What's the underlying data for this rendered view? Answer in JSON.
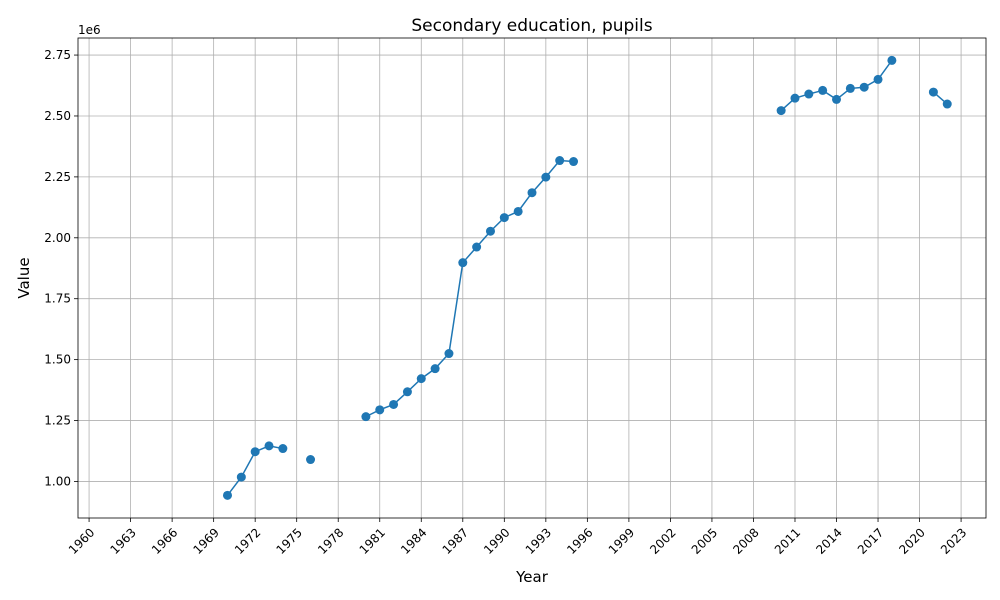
{
  "chart_data": {
    "type": "line",
    "title": "Secondary education, pupils",
    "xlabel": "Year",
    "ylabel": "Value",
    "y_offset_label": "1e6",
    "xlim": [
      1959.2,
      2024.8
    ],
    "ylim": [
      850000,
      2820000
    ],
    "x_ticks": [
      1960,
      1963,
      1966,
      1969,
      1972,
      1975,
      1978,
      1981,
      1984,
      1987,
      1990,
      1993,
      1996,
      1999,
      2002,
      2005,
      2008,
      2011,
      2014,
      2017,
      2020,
      2023
    ],
    "y_ticks": [
      1000000,
      1250000,
      1500000,
      1750000,
      2000000,
      2250000,
      2500000,
      2750000
    ],
    "y_tick_labels": [
      "1.00",
      "1.25",
      "1.50",
      "1.75",
      "2.00",
      "2.25",
      "2.50",
      "2.75"
    ],
    "grid": true,
    "color": "#1f77b4",
    "marker": "circle",
    "x": [
      1970,
      1971,
      1972,
      1973,
      1974,
      1975,
      1976,
      1977,
      1978,
      1979,
      1980,
      1981,
      1982,
      1983,
      1984,
      1985,
      1986,
      1987,
      1988,
      1989,
      1990,
      1991,
      1992,
      1993,
      1994,
      1995,
      1996,
      1997,
      1998,
      1999,
      2000,
      2001,
      2002,
      2003,
      2004,
      2005,
      2006,
      2007,
      2008,
      2009,
      2010,
      2011,
      2012,
      2013,
      2014,
      2015,
      2016,
      2017,
      2018,
      2019,
      2020,
      2021,
      2022
    ],
    "y": [
      943000,
      1018000,
      1122000,
      1146000,
      1135000,
      null,
      1090000,
      null,
      null,
      null,
      1266000,
      1294000,
      1316000,
      1368000,
      1422000,
      1463000,
      1525000,
      1898000,
      1962000,
      2027000,
      2083000,
      2108000,
      2185000,
      2249000,
      2317000,
      2313000,
      null,
      null,
      null,
      null,
      null,
      null,
      null,
      null,
      null,
      null,
      null,
      null,
      null,
      null,
      2522000,
      2573000,
      2590000,
      2605000,
      2568000,
      2613000,
      2618000,
      2650000,
      2728000,
      null,
      null,
      2598000,
      2549000
    ]
  }
}
